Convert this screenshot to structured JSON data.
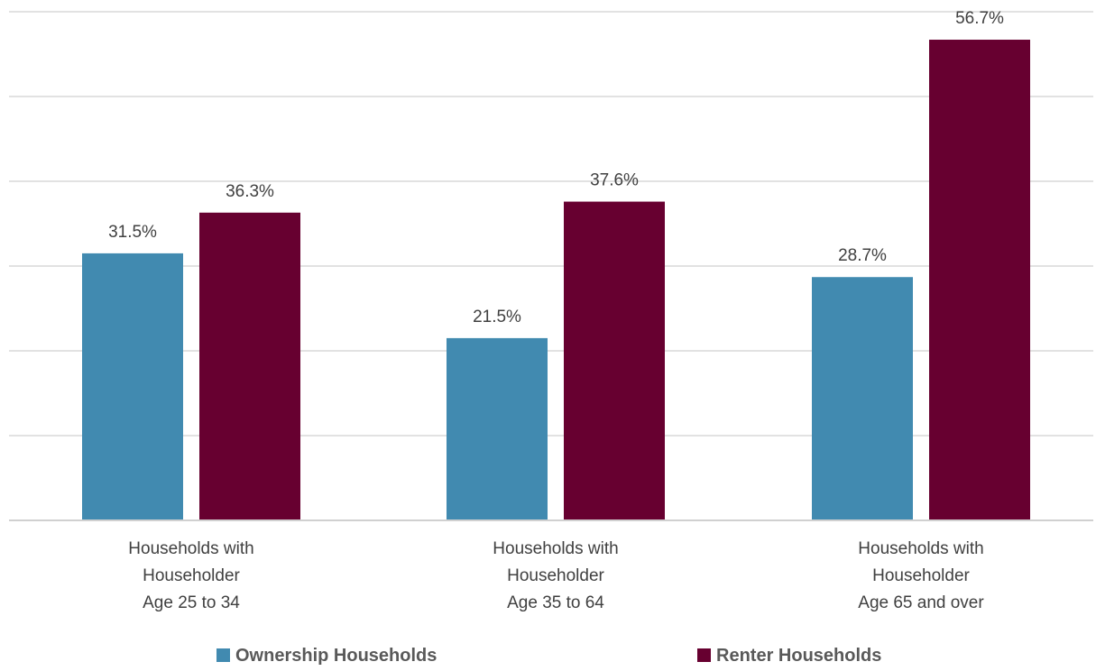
{
  "chart_data": {
    "type": "bar",
    "categories": [
      [
        "Households with",
        "Householder",
        "Age 25 to 34"
      ],
      [
        "Households with",
        "Householder",
        "Age 35 to 64"
      ],
      [
        "Households with",
        "Householder",
        "Age 65 and over"
      ]
    ],
    "series": [
      {
        "name": "Ownership Households",
        "color": "#418ab0",
        "values": [
          31.5,
          21.5,
          28.7
        ],
        "labels": [
          "31.5%",
          "21.5%",
          "28.7%"
        ]
      },
      {
        "name": "Renter Households",
        "color": "#670030",
        "values": [
          36.3,
          37.6,
          56.7
        ],
        "labels": [
          "36.3%",
          "37.6%",
          "56.7%"
        ]
      }
    ],
    "ylim": [
      0,
      60
    ],
    "grid": true,
    "gridline_count": 6,
    "legend_position": "bottom"
  }
}
